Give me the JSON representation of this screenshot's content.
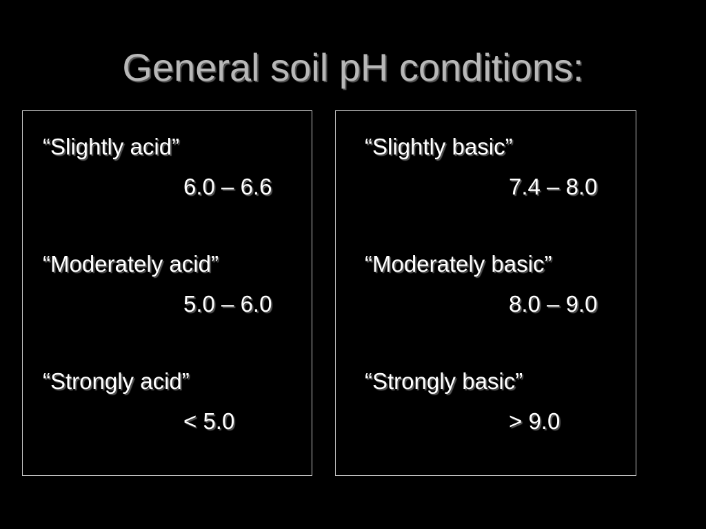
{
  "slide": {
    "title": "General soil pH conditions:"
  },
  "acid": {
    "items": [
      {
        "label": "“Slightly acid”",
        "range": "6.0 – 6.6"
      },
      {
        "label": "“Moderately acid”",
        "range": "5.0 – 6.0"
      },
      {
        "label": "“Strongly acid”",
        "range": "< 5.0"
      }
    ]
  },
  "basic": {
    "items": [
      {
        "label": "“Slightly basic”",
        "range": "7.4 – 8.0"
      },
      {
        "label": "“Moderately basic”",
        "range": "8.0 – 9.0"
      },
      {
        "label": "“Strongly basic”",
        "range": "> 9.0"
      }
    ]
  },
  "colors": {
    "background": "#000000",
    "title_text": "#b8b8b8",
    "body_text": "#ffffff",
    "panel_border": "#c8c8c8"
  }
}
